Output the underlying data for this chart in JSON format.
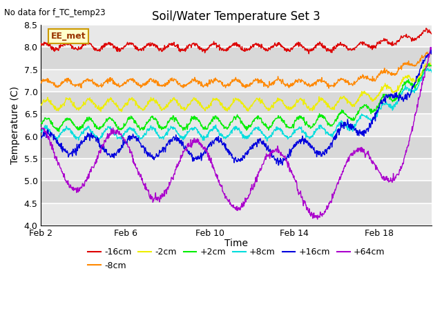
{
  "title": "Soil/Water Temperature Set 3",
  "xlabel": "Time",
  "ylabel": "Temperature (C)",
  "annotation": "No data for f_TC_temp23",
  "legend_label": "EE_met",
  "ylim": [
    4.0,
    8.5
  ],
  "yticks": [
    4.0,
    4.5,
    5.0,
    5.5,
    6.0,
    6.5,
    7.0,
    7.5,
    8.0,
    8.5
  ],
  "xtick_labels": [
    "Feb 2",
    "Feb 6",
    "Feb 10",
    "Feb 14",
    "Feb 18"
  ],
  "xtick_positions": [
    0,
    4,
    8,
    12,
    16
  ],
  "series": [
    {
      "label": "-16cm",
      "color": "#dd0000",
      "base": 8.02,
      "amp": 0.07,
      "period": 1.0,
      "phase": 0.3,
      "noise": 0.025,
      "trend_day": 13.5,
      "trend_amp": 0.35,
      "trend_exp": 2.0,
      "early_trend": -0.002
    },
    {
      "label": "-8cm",
      "color": "#ff8800",
      "base": 7.2,
      "amp": 0.07,
      "period": 1.0,
      "phase": 0.1,
      "noise": 0.025,
      "trend_day": 13.5,
      "trend_amp": 0.65,
      "trend_exp": 2.0,
      "early_trend": 0.0
    },
    {
      "label": "-2cm",
      "color": "#eeee00",
      "base": 6.72,
      "amp": 0.11,
      "period": 1.0,
      "phase": -0.2,
      "noise": 0.025,
      "trend_day": 13.0,
      "trend_amp": 0.85,
      "trend_exp": 2.0,
      "early_trend": 0.0
    },
    {
      "label": "+2cm",
      "color": "#00ee00",
      "base": 6.28,
      "amp": 0.12,
      "period": 1.0,
      "phase": -0.1,
      "noise": 0.025,
      "trend_day": 12.5,
      "trend_amp": 1.2,
      "trend_exp": 2.0,
      "early_trend": 0.003
    },
    {
      "label": "+8cm",
      "color": "#00dddd",
      "base": 6.08,
      "amp": 0.11,
      "period": 1.0,
      "phase": 0.2,
      "noise": 0.025,
      "trend_day": 12.5,
      "trend_amp": 1.4,
      "trend_exp": 2.0,
      "early_trend": 0.0
    },
    {
      "label": "+16cm",
      "color": "#0000dd",
      "base": 5.85,
      "amp": 0.22,
      "period": 2.0,
      "phase": 0.5,
      "noise": 0.04,
      "trend_day": 11.0,
      "trend_amp": 2.2,
      "trend_exp": 2.0,
      "early_trend": -0.018
    },
    {
      "label": "+64cm",
      "color": "#aa00cc",
      "base": 5.6,
      "amp": 0.7,
      "period": 3.8,
      "phase": 2.0,
      "noise": 0.04,
      "trend_day": 13.0,
      "trend_amp": 2.8,
      "trend_exp": 2.5,
      "early_trend": -0.055
    }
  ],
  "n_days": 18.5,
  "n_points": 1000,
  "fig_bg": "#ffffff",
  "plot_bg_light": "#e8e8e8",
  "plot_bg_dark": "#d4d4d4",
  "title_fontsize": 12,
  "label_fontsize": 10,
  "tick_fontsize": 9,
  "legend_fontsize": 9
}
